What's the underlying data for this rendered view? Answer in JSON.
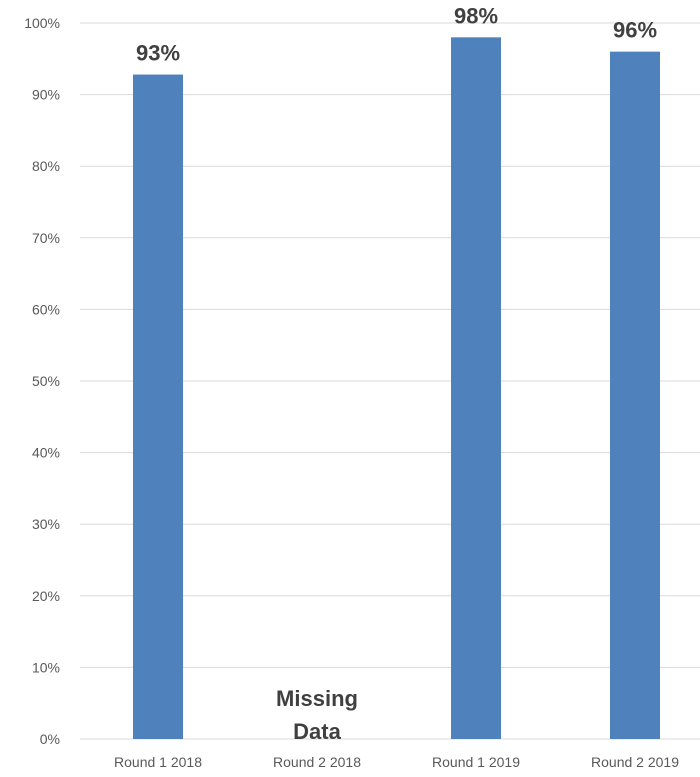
{
  "chart_data": {
    "type": "bar",
    "categories": [
      "Round 1 2018",
      "Round 2 2018",
      "Round 1 2019",
      "Round 2 2019"
    ],
    "values": [
      0.928,
      null,
      0.98,
      0.96
    ],
    "data_labels": [
      "93%",
      "",
      "98%",
      "96%"
    ],
    "ylim": [
      0,
      1
    ],
    "y_ticks": [
      0,
      0.1,
      0.2,
      0.3,
      0.4,
      0.5,
      0.6,
      0.7,
      0.8,
      0.9,
      1.0
    ],
    "y_tick_labels": [
      "0%",
      "10%",
      "20%",
      "30%",
      "40%",
      "50%",
      "60%",
      "70%",
      "80%",
      "90%",
      "100%"
    ],
    "grid": true,
    "bar_color": "#4f81bd",
    "annotations": [
      {
        "category": "Round 2 2018",
        "lines": [
          "Missing",
          "Data"
        ]
      }
    ]
  }
}
